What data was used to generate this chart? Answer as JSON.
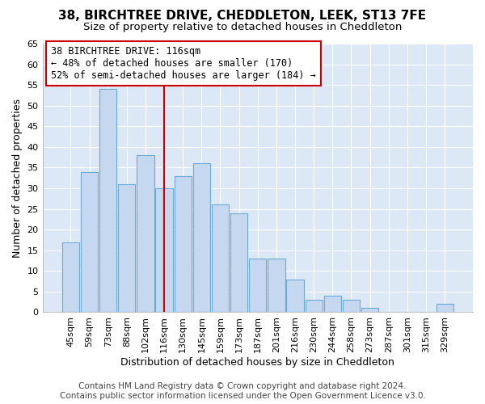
{
  "title": "38, BIRCHTREE DRIVE, CHEDDLETON, LEEK, ST13 7FE",
  "subtitle": "Size of property relative to detached houses in Cheddleton",
  "xlabel": "Distribution of detached houses by size in Cheddleton",
  "ylabel": "Number of detached properties",
  "categories": [
    "45sqm",
    "59sqm",
    "73sqm",
    "88sqm",
    "102sqm",
    "116sqm",
    "130sqm",
    "145sqm",
    "159sqm",
    "173sqm",
    "187sqm",
    "201sqm",
    "216sqm",
    "230sqm",
    "244sqm",
    "258sqm",
    "273sqm",
    "287sqm",
    "301sqm",
    "315sqm",
    "329sqm"
  ],
  "values": [
    17,
    34,
    54,
    31,
    38,
    30,
    33,
    36,
    26,
    24,
    13,
    13,
    8,
    3,
    4,
    3,
    1,
    0,
    0,
    0,
    2
  ],
  "bar_color": "#c5d8f0",
  "bar_edge_color": "#6aaad4",
  "highlight_index": 5,
  "highlight_line_color": "#cc0000",
  "ylim": [
    0,
    65
  ],
  "yticks": [
    0,
    5,
    10,
    15,
    20,
    25,
    30,
    35,
    40,
    45,
    50,
    55,
    60,
    65
  ],
  "annotation_title": "38 BIRCHTREE DRIVE: 116sqm",
  "annotation_line1": "← 48% of detached houses are smaller (170)",
  "annotation_line2": "52% of semi-detached houses are larger (184) →",
  "annotation_box_color": "#ffffff",
  "annotation_box_edge": "#cc0000",
  "footer1": "Contains HM Land Registry data © Crown copyright and database right 2024.",
  "footer2": "Contains public sector information licensed under the Open Government Licence v3.0.",
  "background_color": "#ffffff",
  "plot_bg_color": "#dce8f5",
  "grid_color": "#ffffff",
  "title_fontsize": 11,
  "subtitle_fontsize": 9.5,
  "axis_label_fontsize": 9,
  "tick_fontsize": 8,
  "ann_fontsize": 8.5,
  "footer_fontsize": 7.5
}
